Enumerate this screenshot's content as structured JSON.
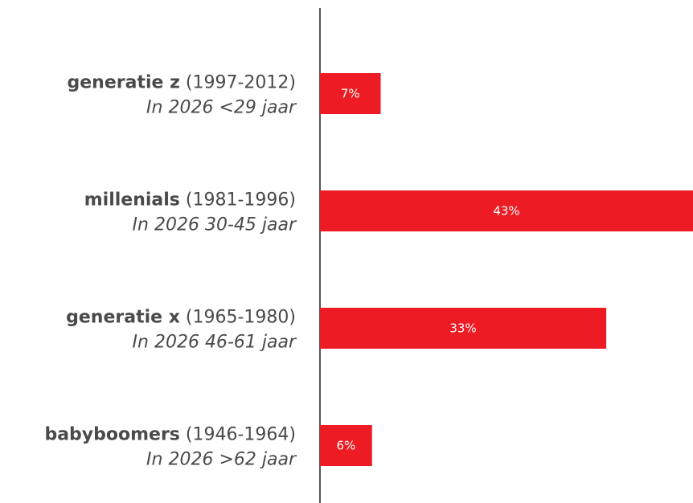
{
  "chart_data": {
    "type": "bar",
    "orientation": "horizontal",
    "categories": [
      "generatie z",
      "millenials",
      "generatie x",
      "babyboomers"
    ],
    "years": [
      "(1997-2012)",
      "(1981-1996)",
      "(1965-1980)",
      "(1946-1964)"
    ],
    "subtitles": [
      "In 2026 <29 jaar",
      "In 2026 30-45 jaar",
      "In 2026 46-61 jaar",
      "In 2026 >62 jaar"
    ],
    "values": [
      7,
      43,
      33,
      6
    ],
    "value_labels": [
      "7%",
      "43%",
      "33%",
      "6%"
    ],
    "color": "#ed1c24",
    "xlim": [
      0,
      43
    ]
  }
}
